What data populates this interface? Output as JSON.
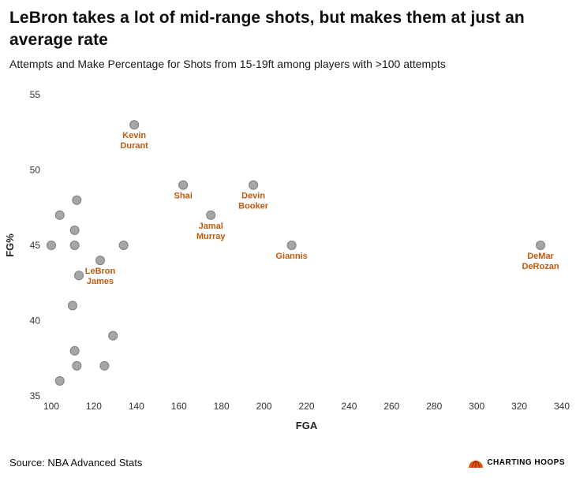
{
  "header": {
    "title_lines": [
      "LeBron takes a lot of mid-range shots, but makes them at just an",
      "average rate"
    ],
    "subtitle": "Attempts and Make Percentage for Shots from 15-19ft among players with >100 attempts"
  },
  "footer": {
    "source": "Source: NBA Advanced Stats",
    "brand": "CHARTING HOOPS"
  },
  "chart_data": {
    "type": "scatter",
    "title": "LeBron takes a lot of mid-range shots, but makes them at just an average rate",
    "subtitle": "Attempts and Make Percentage for Shots from 15-19ft among players with >100 attempts",
    "xlabel": "FGA",
    "ylabel": "FG%",
    "xlim": [
      100,
      340
    ],
    "ylim": [
      35,
      55
    ],
    "xticks": [
      100,
      120,
      140,
      160,
      180,
      200,
      220,
      240,
      260,
      280,
      300,
      320,
      340
    ],
    "yticks": [
      35,
      40,
      45,
      50,
      55
    ],
    "grid": false,
    "legend": false,
    "point_color": "#a6a6a6",
    "point_stroke": "#7f7f7f",
    "label_color": "#c05a0e",
    "points": [
      {
        "x": 100,
        "y": 45
      },
      {
        "x": 104,
        "y": 47
      },
      {
        "x": 104,
        "y": 36
      },
      {
        "x": 112,
        "y": 48
      },
      {
        "x": 111,
        "y": 46
      },
      {
        "x": 111,
        "y": 45
      },
      {
        "x": 113,
        "y": 43
      },
      {
        "x": 110,
        "y": 41
      },
      {
        "x": 111,
        "y": 38
      },
      {
        "x": 112,
        "y": 37
      },
      {
        "x": 125,
        "y": 37
      },
      {
        "x": 129,
        "y": 39
      },
      {
        "x": 123,
        "y": 44,
        "label": "LeBron James"
      },
      {
        "x": 134,
        "y": 45
      },
      {
        "x": 139,
        "y": 53,
        "label": "Kevin Durant"
      },
      {
        "x": 162,
        "y": 49,
        "label": "Shai"
      },
      {
        "x": 175,
        "y": 47,
        "label": "Jamal Murray"
      },
      {
        "x": 195,
        "y": 49,
        "label": "Devin Booker"
      },
      {
        "x": 213,
        "y": 45,
        "label": "Giannis"
      },
      {
        "x": 330,
        "y": 45,
        "label": "DeMar DeRozan"
      }
    ]
  }
}
